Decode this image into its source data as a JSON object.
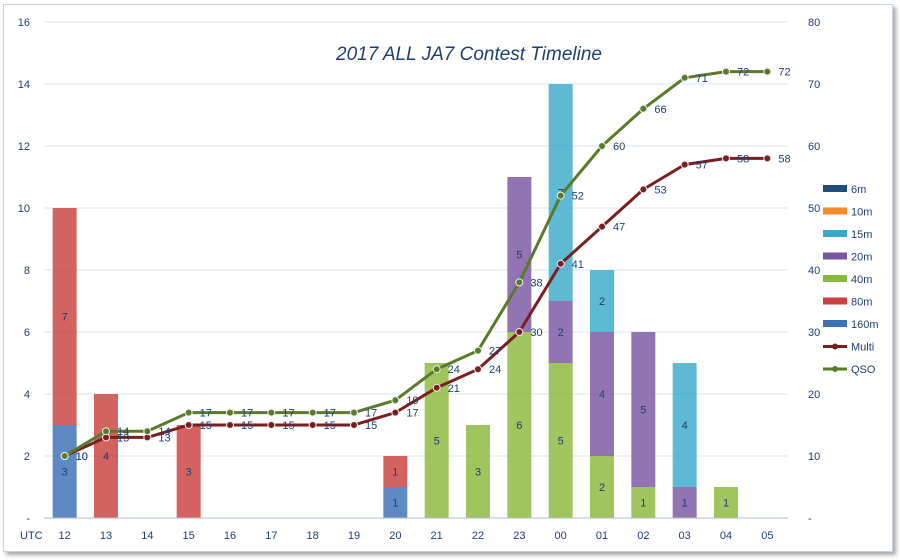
{
  "chart_data": {
    "type": "bar",
    "title": "2017 ALL JA7 Contest Timeline",
    "xlabel": "UTC",
    "categories": [
      "12",
      "13",
      "14",
      "15",
      "16",
      "17",
      "18",
      "19",
      "20",
      "21",
      "22",
      "23",
      "00",
      "01",
      "02",
      "03",
      "04",
      "05"
    ],
    "ylim": [
      0,
      16
    ],
    "y_ticks": [
      "-",
      "2",
      "4",
      "6",
      "8",
      "10",
      "12",
      "14",
      "16"
    ],
    "y2lim": [
      0,
      80
    ],
    "y2_ticks": [
      "-",
      "10",
      "20",
      "30",
      "40",
      "50",
      "60",
      "70",
      "80"
    ],
    "grid": true,
    "legend_position": "right",
    "series": [
      {
        "name": "160m",
        "kind": "bar",
        "color": "#3b6fb6",
        "values": [
          3,
          0,
          0,
          0,
          0,
          0,
          0,
          0,
          1,
          0,
          0,
          0,
          0,
          0,
          0,
          0,
          0,
          0
        ]
      },
      {
        "name": "80m",
        "kind": "bar",
        "color": "#c9403e",
        "values": [
          7,
          4,
          0,
          3,
          0,
          0,
          0,
          0,
          1,
          0,
          0,
          0,
          0,
          0,
          0,
          0,
          0,
          0
        ]
      },
      {
        "name": "40m",
        "kind": "bar",
        "color": "#8ab83c",
        "values": [
          0,
          0,
          0,
          0,
          0,
          0,
          0,
          0,
          0,
          5,
          3,
          6,
          5,
          2,
          1,
          0,
          1,
          0
        ]
      },
      {
        "name": "20m",
        "kind": "bar",
        "color": "#7a55a2",
        "values": [
          0,
          0,
          0,
          0,
          0,
          0,
          0,
          0,
          0,
          0,
          0,
          5,
          2,
          4,
          5,
          1,
          0,
          0
        ]
      },
      {
        "name": "15m",
        "kind": "bar",
        "color": "#3aa9c9",
        "values": [
          0,
          0,
          0,
          0,
          0,
          0,
          0,
          0,
          0,
          0,
          0,
          0,
          7,
          2,
          0,
          4,
          0,
          0
        ]
      },
      {
        "name": "10m",
        "kind": "bar",
        "color": "#f38a2e",
        "values": [
          0,
          0,
          0,
          0,
          0,
          0,
          0,
          0,
          0,
          0,
          0,
          0,
          0,
          0,
          0,
          0,
          0,
          0
        ]
      },
      {
        "name": "6m",
        "kind": "bar",
        "color": "#1f4e79",
        "values": [
          0,
          0,
          0,
          0,
          0,
          0,
          0,
          0,
          0,
          0,
          0,
          0,
          0,
          0,
          0,
          0,
          0,
          0
        ]
      },
      {
        "name": "Multi",
        "kind": "line",
        "axis": "right",
        "color": "#7a1f1f",
        "values": [
          10,
          13,
          13,
          15,
          15,
          15,
          15,
          15,
          17,
          21,
          24,
          30,
          41,
          47,
          53,
          57,
          58,
          58
        ]
      },
      {
        "name": "QSO",
        "kind": "line",
        "axis": "right",
        "color": "#5a7a2a",
        "values": [
          10,
          14,
          14,
          17,
          17,
          17,
          17,
          17,
          19,
          24,
          27,
          38,
          52,
          60,
          66,
          71,
          72,
          72
        ]
      }
    ],
    "legend_order": [
      "6m",
      "10m",
      "15m",
      "20m",
      "40m",
      "80m",
      "160m",
      "Multi",
      "QSO"
    ]
  }
}
